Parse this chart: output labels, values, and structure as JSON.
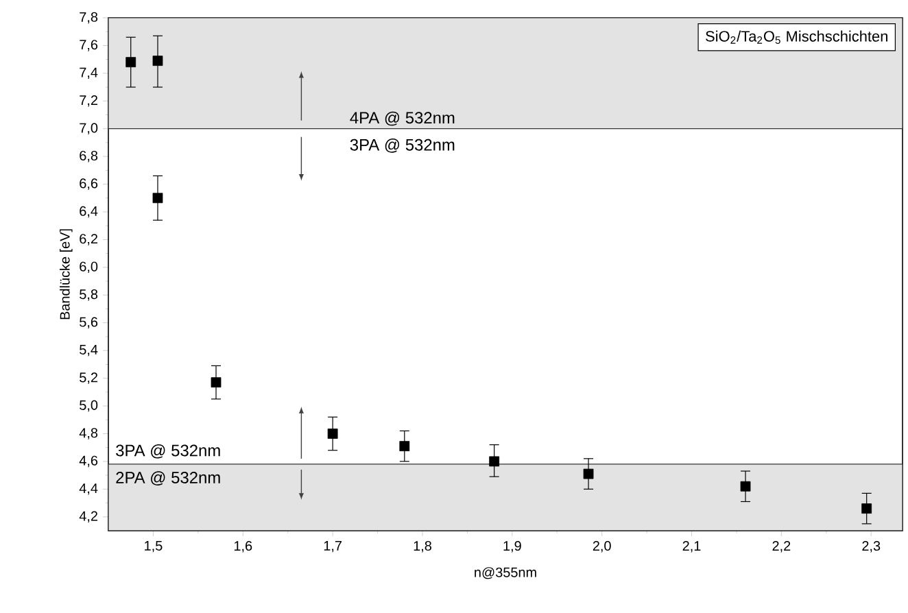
{
  "chart_data": {
    "type": "scatter",
    "xlabel": "n@355nm",
    "ylabel": "Bandlücke [eV]",
    "x": [
      1.475,
      1.505,
      1.505,
      1.57,
      1.7,
      1.78,
      1.88,
      1.985,
      2.16,
      2.295
    ],
    "series": [
      {
        "color": "#000000",
        "values": [
          7.48,
          7.49,
          6.5,
          5.17,
          4.8,
          4.71,
          4.6,
          4.51,
          4.42,
          4.26
        ],
        "errors": [
          [
            7.3,
            7.66
          ],
          [
            7.3,
            7.67
          ],
          [
            6.34,
            6.66
          ],
          [
            5.05,
            5.29
          ],
          [
            4.68,
            4.92
          ],
          [
            4.6,
            4.82
          ],
          [
            4.49,
            4.72
          ],
          [
            4.4,
            4.62
          ],
          [
            4.31,
            4.53
          ],
          [
            4.15,
            4.37
          ]
        ]
      }
    ],
    "marker": "square",
    "xlim": [
      1.45,
      2.335
    ],
    "ylim": [
      4.1,
      7.8
    ],
    "xticks": [
      {
        "value": 1.5,
        "label": "1,5"
      },
      {
        "value": 1.6,
        "label": "1,6"
      },
      {
        "value": 1.7,
        "label": "1,7"
      },
      {
        "value": 1.8,
        "label": "1,8"
      },
      {
        "value": 1.9,
        "label": "1,9"
      },
      {
        "value": 2.0,
        "label": "2,0"
      },
      {
        "value": 2.1,
        "label": "2,1"
      },
      {
        "value": 2.2,
        "label": "2,2"
      },
      {
        "value": 2.3,
        "label": "2,3"
      }
    ],
    "yticks": [
      {
        "value": 4.2,
        "label": "4,2"
      },
      {
        "value": 4.4,
        "label": "4,4"
      },
      {
        "value": 4.6,
        "label": "4,6"
      },
      {
        "value": 4.8,
        "label": "4,8"
      },
      {
        "value": 5.0,
        "label": "5,0"
      },
      {
        "value": 5.2,
        "label": "5,2"
      },
      {
        "value": 5.4,
        "label": "5,4"
      },
      {
        "value": 5.6,
        "label": "5,6"
      },
      {
        "value": 5.8,
        "label": "5,8"
      },
      {
        "value": 6.0,
        "label": "6,0"
      },
      {
        "value": 6.2,
        "label": "6,2"
      },
      {
        "value": 6.4,
        "label": "6,4"
      },
      {
        "value": 6.6,
        "label": "6,6"
      },
      {
        "value": 6.8,
        "label": "6,8"
      },
      {
        "value": 7.0,
        "label": "7,0"
      },
      {
        "value": 7.2,
        "label": "7,2"
      },
      {
        "value": 7.4,
        "label": "7,4"
      },
      {
        "value": 7.6,
        "label": "7,6"
      },
      {
        "value": 7.8,
        "label": "7,8"
      }
    ],
    "bands": [
      {
        "axis": "y",
        "from": 7.0,
        "to": 7.8,
        "label": "4PA @ 532nm",
        "color": "#e3e3e3"
      },
      {
        "axis": "y",
        "from": 4.1,
        "to": 4.58,
        "label": "2PA @ 532nm",
        "color": "#e3e3e3"
      }
    ],
    "annotations": [
      "SiO$_{2}$/Ta$_{2}$O$_{5}$ Mischschichten",
      "3PA @ 532nm",
      "3PA @ 532nm"
    ]
  }
}
